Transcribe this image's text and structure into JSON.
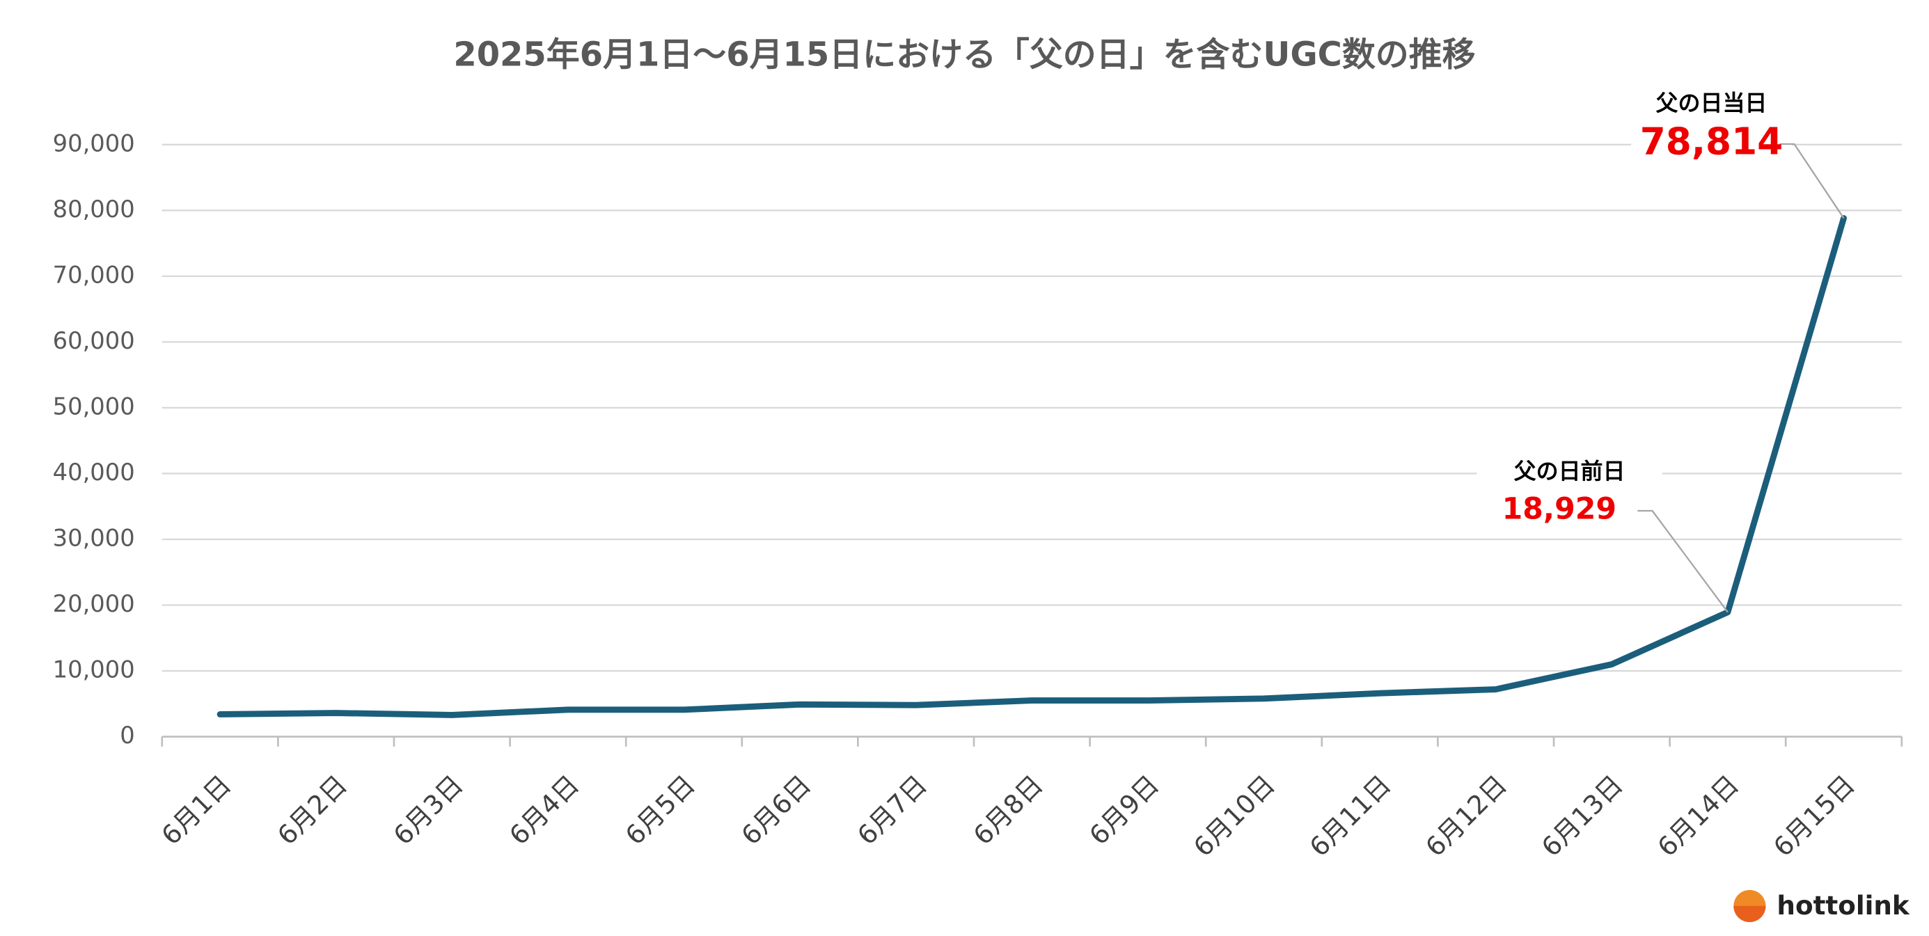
{
  "chart_data": {
    "type": "line",
    "title": "2025年6月1日～6月15日における「父の日」を含むUGC数の推移",
    "categories": [
      "6月1日",
      "6月2日",
      "6月3日",
      "6月4日",
      "6月5日",
      "6月6日",
      "6月7日",
      "6月8日",
      "6月9日",
      "6月10日",
      "6月11日",
      "6月12日",
      "6月13日",
      "6月14日",
      "6月15日"
    ],
    "series": [
      {
        "name": "UGC数",
        "color": "#1b5e7b",
        "values": [
          3400,
          3600,
          3300,
          4100,
          4100,
          4900,
          4800,
          5500,
          5500,
          5800,
          6600,
          7200,
          11000,
          18929,
          78814
        ],
        "value_labels": [
          null,
          null,
          null,
          null,
          null,
          null,
          null,
          null,
          null,
          null,
          null,
          null,
          null,
          "18,929",
          "78,814"
        ]
      }
    ],
    "annotations": [
      "父の日前日",
      "父の日当日"
    ],
    "ylim": [
      0,
      90000
    ],
    "yticks": [
      0,
      {
        "value": 10000,
        "label": "10,000"
      },
      {
        "value": 20000,
        "label": "20,000"
      },
      {
        "value": 30000,
        "label": "30,000"
      },
      {
        "value": 40000,
        "label": "40,000"
      },
      {
        "value": 50000,
        "label": "50,000"
      },
      {
        "value": 60000,
        "label": "60,000"
      },
      {
        "value": 70000,
        "label": "70,000"
      },
      {
        "value": 80000,
        "label": "80,000"
      },
      {
        "value": 90000,
        "label": "90,000"
      }
    ],
    "grid": true,
    "legend": false
  },
  "logo": "hottolink"
}
